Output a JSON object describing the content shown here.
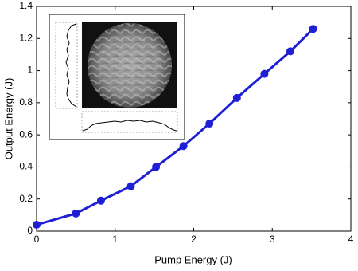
{
  "chart_data": {
    "type": "line",
    "xlabel": "Pump Energy (J)",
    "ylabel": "Output Energy (J)",
    "x": [
      0,
      0.5,
      0.82,
      1.2,
      1.52,
      1.87,
      2.2,
      2.55,
      2.9,
      3.23,
      3.52
    ],
    "series": [
      {
        "color": "#1f1fd6",
        "values": [
          0.04,
          0.11,
          0.19,
          0.28,
          0.4,
          0.53,
          0.67,
          0.83,
          0.98,
          1.12,
          1.26
        ]
      }
    ],
    "xlim": [
      0,
      4
    ],
    "xticks": [
      0,
      1,
      2,
      3,
      4
    ],
    "ylim": [
      0,
      1.4
    ],
    "yticks": [
      0,
      0.2,
      0.4,
      0.6,
      0.8,
      1,
      1.2,
      1.4
    ]
  }
}
